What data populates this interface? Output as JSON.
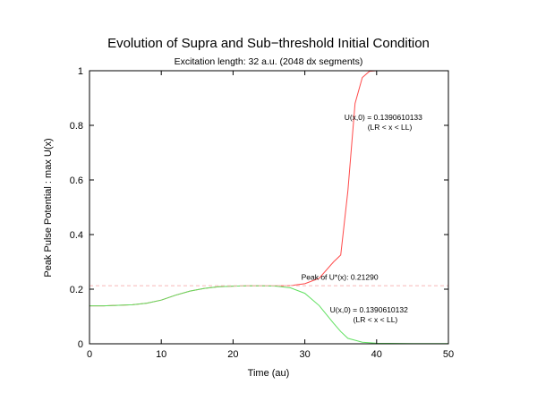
{
  "chart_data": {
    "type": "line",
    "title": "Evolution of Supra and Sub−threshold Initial Condition",
    "subtitle": "Excitation length: 32 a.u. (2048 dx segments)",
    "xlabel": "Time (au)",
    "ylabel": "Peak Pulse Potential : max U(x)",
    "xlim": [
      0,
      50
    ],
    "ylim": [
      0,
      1
    ],
    "xticks": [
      0,
      10,
      20,
      30,
      40,
      50
    ],
    "yticks": [
      0,
      0.2,
      0.4,
      0.6,
      0.8,
      1
    ],
    "grid": false,
    "series": [
      {
        "color": "#ff4a4a",
        "x": [
          0,
          2,
          4,
          6,
          8,
          10,
          12,
          14,
          16,
          18,
          20,
          22,
          24,
          26,
          28,
          30,
          32,
          34,
          35,
          36,
          37,
          38,
          39,
          40,
          45,
          50
        ],
        "y": [
          0.139,
          0.139,
          0.141,
          0.143,
          0.149,
          0.16,
          0.178,
          0.193,
          0.203,
          0.209,
          0.211,
          0.212,
          0.212,
          0.212,
          0.213,
          0.22,
          0.24,
          0.3,
          0.325,
          0.56,
          0.88,
          0.975,
          0.998,
          1.0,
          1.0,
          1.0
        ]
      },
      {
        "color": "#5fe05f",
        "x": [
          0,
          2,
          4,
          6,
          8,
          10,
          12,
          14,
          16,
          18,
          20,
          22,
          24,
          26,
          28,
          30,
          32,
          34,
          35,
          36,
          38,
          40,
          45,
          50
        ],
        "y": [
          0.139,
          0.139,
          0.141,
          0.143,
          0.149,
          0.16,
          0.178,
          0.193,
          0.203,
          0.209,
          0.211,
          0.212,
          0.212,
          0.211,
          0.205,
          0.185,
          0.14,
          0.075,
          0.045,
          0.02,
          0.006,
          0.002,
          0.001,
          0.001
        ]
      },
      {
        "color": "#f7b8b8",
        "dashed": true,
        "x": [
          0,
          50
        ],
        "y": [
          0.2129,
          0.2129
        ]
      }
    ],
    "annotations": [
      {
        "lines": [
          "U(x,0) = 0.1390610133",
          "(LR < x < LL)"
        ],
        "x": 35.5,
        "y": 0.82
      },
      {
        "lines": [
          "Peak of U*(x): 0.21290"
        ],
        "x": 29.5,
        "y": 0.235
      },
      {
        "lines": [
          "U(x,0) = 0.1390610132",
          "(LR < x < LL)"
        ],
        "x": 33.5,
        "y": 0.115
      }
    ]
  }
}
